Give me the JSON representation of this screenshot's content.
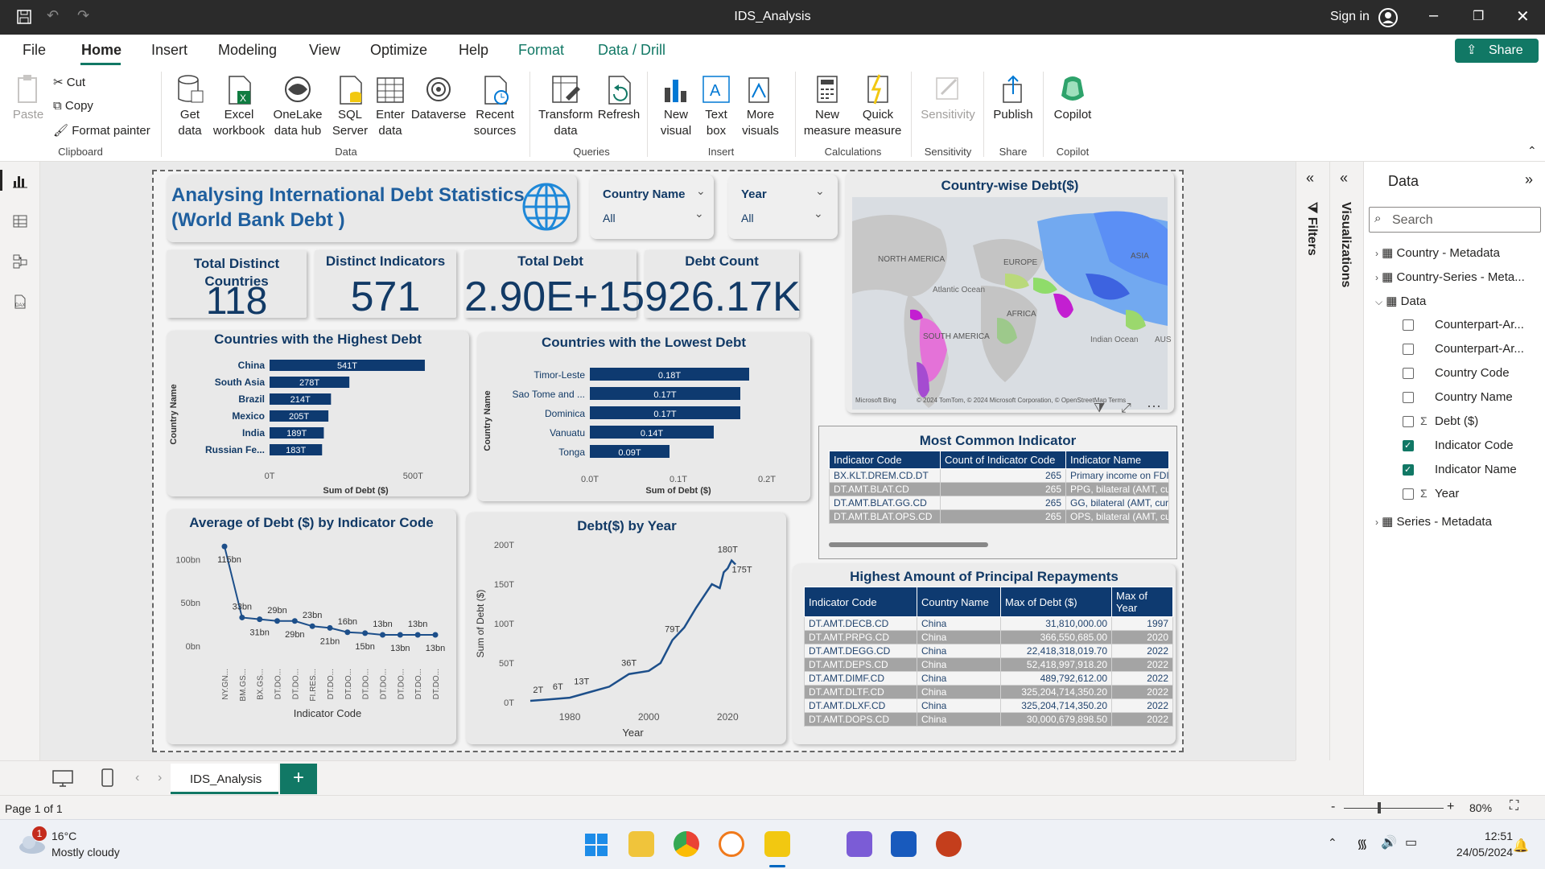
{
  "window": {
    "title": "IDS_Analysis",
    "sign_in": "Sign in"
  },
  "menu": {
    "items": [
      "File",
      "Home",
      "Insert",
      "Modeling",
      "View",
      "Optimize",
      "Help",
      "Format",
      "Data / Drill"
    ],
    "share": "Share"
  },
  "ribbon": {
    "clipboard": {
      "paste": "Paste",
      "cut": "Cut",
      "copy": "Copy",
      "format_painter": "Format painter",
      "group": "Clipboard"
    },
    "data": {
      "get_data": "Get data",
      "excel": "Excel workbook",
      "onelake": "OneLake data hub",
      "sql": "SQL Server",
      "enter": "Enter data",
      "dataverse": "Dataverse",
      "recent": "Recent sources",
      "group": "Data"
    },
    "queries": {
      "transform": "Transform data",
      "refresh": "Refresh",
      "group": "Queries"
    },
    "insert": {
      "new_visual": "New visual",
      "text_box": "Text box",
      "more_visuals": "More visuals",
      "group": "Insert"
    },
    "calculations": {
      "new_measure": "New measure",
      "quick_measure": "Quick measure",
      "group": "Calculations"
    },
    "sensitivity": {
      "label": "Sensitivity",
      "group": "Sensitivity"
    },
    "share": {
      "publish": "Publish",
      "group": "Share"
    },
    "copilot": {
      "label": "Copilot",
      "group": "Copilot"
    }
  },
  "report": {
    "title_line1": "Analysing International Debt Statistics",
    "title_line2": "(World Bank Debt )",
    "slicers": [
      {
        "label": "Country Name",
        "value": "All"
      },
      {
        "label": "Year",
        "value": "All"
      }
    ],
    "kpis": [
      {
        "title": "Total Distinct Countries",
        "value": "118"
      },
      {
        "title": "Distinct Indicators",
        "value": "571"
      },
      {
        "title": "Total Debt",
        "value": "2.90E+15"
      },
      {
        "title": "Debt Count",
        "value": "926.17K"
      }
    ],
    "map": {
      "title": "Country-wise Debt($)",
      "labels": [
        "NORTH AMERICA",
        "EUROPE",
        "ASIA",
        "Atlantic Ocean",
        "AFRICA",
        "SOUTH AMERICA",
        "Indian Ocean",
        "AUS"
      ],
      "attribution": "Microsoft Bing",
      "copyright": "© 2024 TomTom, © 2024 Microsoft Corporation, © OpenStreetMap  Terms"
    },
    "most_common": {
      "title": "Most Common Indicator",
      "columns": [
        "Indicator Code",
        "Count of Indicator Code",
        "Indicator Name"
      ],
      "rows": [
        [
          "BX.KLT.DREM.CD.DT",
          "265",
          "Primary income on FDI"
        ],
        [
          "DT.AMT.BLAT.CD",
          "265",
          "PPG, bilateral (AMT, current US$)"
        ],
        [
          "DT.AMT.BLAT.GG.CD",
          "265",
          "GG, bilateral (AMT, current US$)"
        ],
        [
          "DT.AMT.BLAT.OPS.CD",
          "265",
          "OPS, bilateral (AMT, current US$)"
        ]
      ]
    },
    "repayments": {
      "title": "Highest Amount of Principal Repayments",
      "columns": [
        "Indicator Code",
        "Country Name",
        "Max of Debt ($)",
        "Max of Year"
      ],
      "rows": [
        [
          "DT.AMT.DECB.CD",
          "China",
          "31,810,000.00",
          "1997"
        ],
        [
          "DT.AMT.PRPG.CD",
          "China",
          "366,550,685.00",
          "2020"
        ],
        [
          "DT.AMT.DEGG.CD",
          "China",
          "22,418,318,019.70",
          "2022"
        ],
        [
          "DT.AMT.DEPS.CD",
          "China",
          "52,418,997,918.20",
          "2022"
        ],
        [
          "DT.AMT.DIMF.CD",
          "China",
          "489,792,612.00",
          "2022"
        ],
        [
          "DT.AMT.DLTF.CD",
          "China",
          "325,204,714,350.20",
          "2022"
        ],
        [
          "DT.AMT.DLXF.CD",
          "China",
          "325,204,714,350.20",
          "2022"
        ],
        [
          "DT.AMT.DOPS.CD",
          "China",
          "30,000,679,898.50",
          "2022"
        ]
      ]
    }
  },
  "chart_data": [
    {
      "type": "bar",
      "title": "Countries with the Highest Debt",
      "xlabel": "Sum of Debt ($)",
      "ylabel": "Country Name",
      "categories": [
        "China",
        "South Asia",
        "Brazil",
        "Mexico",
        "India",
        "Russian Fe..."
      ],
      "values": [
        541,
        278,
        214,
        205,
        189,
        183
      ],
      "labels": [
        "541T",
        "278T",
        "214T",
        "205T",
        "189T",
        "183T"
      ],
      "xticks": [
        "0T",
        "500T"
      ],
      "xlim": [
        0,
        600
      ]
    },
    {
      "type": "bar",
      "title": "Countries with the Lowest Debt",
      "xlabel": "Sum of Debt ($)",
      "ylabel": "Country Name",
      "categories": [
        "Timor-Leste",
        "Sao Tome and ...",
        "Dominica",
        "Vanuatu",
        "Tonga"
      ],
      "values": [
        0.18,
        0.17,
        0.17,
        0.14,
        0.09
      ],
      "labels": [
        "0.18T",
        "0.17T",
        "0.17T",
        "0.14T",
        "0.09T"
      ],
      "xticks": [
        "0.0T",
        "0.1T",
        "0.2T"
      ],
      "xlim": [
        0,
        0.2
      ]
    },
    {
      "type": "line",
      "title": "Average of Debt ($) by Indicator Code",
      "xlabel": "Indicator Code",
      "categories": [
        "NY.GN...",
        "BM.GS...",
        "BX.GS...",
        "DT.DO...",
        "DT.DO...",
        "FI.RES...",
        "DT.DO...",
        "DT.DO...",
        "DT.DO...",
        "DT.DO...",
        "DT.DO...",
        "DT.DO...",
        "DT.DO..."
      ],
      "values": [
        115,
        33,
        31,
        29,
        29,
        23,
        21,
        16,
        15,
        13,
        13,
        13,
        13
      ],
      "labels": [
        "115bn",
        "33bn",
        "31bn",
        "29bn",
        "29bn",
        "23bn",
        "21bn",
        "16bn",
        "15bn",
        "13bn",
        "13bn",
        "13bn",
        "13bn"
      ],
      "yticks": [
        "100bn",
        "50bn",
        "0bn"
      ],
      "ylim": [
        0,
        130
      ]
    },
    {
      "type": "line",
      "title": "Debt($) by Year",
      "xlabel": "Year",
      "ylabel": "Sum of Debt ($)",
      "x": [
        1970,
        1975,
        1980,
        1985,
        1990,
        1995,
        2000,
        2003,
        2006,
        2009,
        2012,
        2014,
        2016,
        2018,
        2019,
        2020,
        2021,
        2022
      ],
      "values": [
        2,
        4,
        6,
        13,
        20,
        36,
        40,
        50,
        79,
        95,
        120,
        135,
        150,
        145,
        165,
        170,
        180,
        175
      ],
      "labels": [
        "2T",
        "6T",
        "13T",
        "36T",
        "79T",
        "180T",
        "175T"
      ],
      "yticks": [
        "200T",
        "150T",
        "100T",
        "50T",
        "0T"
      ],
      "xticks": [
        "1980",
        "2000",
        "2020"
      ],
      "ylim": [
        0,
        200
      ],
      "xlim": [
        1970,
        2023
      ]
    }
  ],
  "panes": {
    "filters": "Filters",
    "visualizations": "Visualizations",
    "data_title": "Data",
    "search_placeholder": "Search",
    "tables": [
      "Country - Metadata",
      "Country-Series - Meta...",
      "Data",
      "Series - Metadata"
    ],
    "fields": [
      {
        "name": "Counterpart-Ar...",
        "sigma": false,
        "checked": false
      },
      {
        "name": "Counterpart-Ar...",
        "sigma": false,
        "checked": false
      },
      {
        "name": "Country Code",
        "sigma": false,
        "checked": false
      },
      {
        "name": "Country Name",
        "sigma": false,
        "checked": false
      },
      {
        "name": "Debt ($)",
        "sigma": true,
        "checked": false
      },
      {
        "name": "Indicator Code",
        "sigma": false,
        "checked": true
      },
      {
        "name": "Indicator Name",
        "sigma": false,
        "checked": true
      },
      {
        "name": "Year",
        "sigma": true,
        "checked": false
      }
    ]
  },
  "pages": {
    "tab": "IDS_Analysis",
    "status": "Page 1 of 1",
    "zoom": "80%"
  },
  "taskbar": {
    "temp": "16°C",
    "weather": "Mostly cloudy",
    "badge": "1",
    "time": "12:51",
    "date": "24/05/2024"
  },
  "colors": {
    "accent": "#117865",
    "navy": "#123a66",
    "bar": "#0e3a70"
  }
}
